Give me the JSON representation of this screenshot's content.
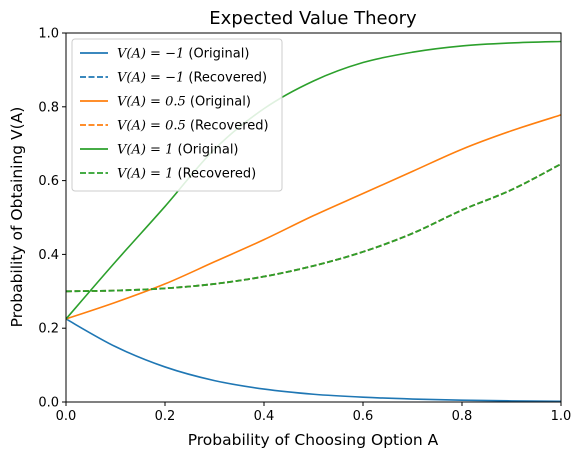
{
  "chart_data": {
    "type": "line",
    "title": "Expected Value Theory",
    "xlabel": "Probability of Choosing Option A",
    "ylabel": "Probability of Obtaining V(A)",
    "xlim": [
      0.0,
      1.0
    ],
    "ylim": [
      0.0,
      1.0
    ],
    "xticks": [
      "0.0",
      "0.2",
      "0.4",
      "0.6",
      "0.8",
      "1.0"
    ],
    "yticks": [
      "0.0",
      "0.2",
      "0.4",
      "0.6",
      "0.8",
      "1.0"
    ],
    "grid": false,
    "legend_position": "upper-left",
    "x": [
      0.0,
      0.1,
      0.2,
      0.3,
      0.4,
      0.5,
      0.6,
      0.7,
      0.8,
      0.9,
      1.0
    ],
    "series": [
      {
        "name": "V(A) = −1 (Original)",
        "legend_math": "V(A) = −1",
        "legend_suffix": " (Original)",
        "color": "#1f77b4",
        "style": "solid",
        "values": [
          0.225,
          0.15,
          0.095,
          0.058,
          0.035,
          0.021,
          0.013,
          0.008,
          0.005,
          0.003,
          0.002
        ]
      },
      {
        "name": "V(A) = −1 (Recovered)",
        "legend_math": "V(A) = −1",
        "legend_suffix": " (Recovered)",
        "color": "#1f77b4",
        "style": "dashed",
        "values": [
          0.3,
          0.302,
          0.308,
          0.32,
          0.34,
          0.369,
          0.407,
          0.457,
          0.52,
          0.575,
          0.645
        ]
      },
      {
        "name": "V(A) = 0.5 (Original)",
        "legend_math": "V(A) = 0.5",
        "legend_suffix": " (Original)",
        "color": "#ff7f0e",
        "style": "solid",
        "values": [
          0.225,
          0.27,
          0.32,
          0.38,
          0.44,
          0.505,
          0.565,
          0.625,
          0.685,
          0.735,
          0.778
        ]
      },
      {
        "name": "V(A) = 0.5 (Recovered)",
        "legend_math": "V(A) = 0.5",
        "legend_suffix": " (Recovered)",
        "color": "#ff7f0e",
        "style": "dashed",
        "values": [
          0.3,
          0.302,
          0.308,
          0.32,
          0.34,
          0.369,
          0.407,
          0.457,
          0.52,
          0.575,
          0.645
        ]
      },
      {
        "name": "V(A) = 1 (Original)",
        "legend_math": "V(A) = 1",
        "legend_suffix": " (Original)",
        "color": "#2ca02c",
        "style": "solid",
        "values": [
          0.225,
          0.38,
          0.53,
          0.685,
          0.795,
          0.87,
          0.92,
          0.948,
          0.965,
          0.973,
          0.977
        ]
      },
      {
        "name": "V(A) = 1 (Recovered)",
        "legend_math": "V(A) = 1",
        "legend_suffix": " (Recovered)",
        "color": "#2ca02c",
        "style": "dashed",
        "values": [
          0.3,
          0.302,
          0.308,
          0.32,
          0.34,
          0.369,
          0.407,
          0.457,
          0.52,
          0.575,
          0.645
        ]
      }
    ]
  }
}
